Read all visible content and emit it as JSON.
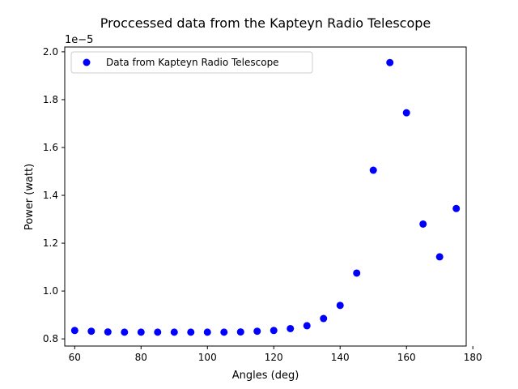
{
  "chart_data": {
    "type": "scatter",
    "title": "Proccessed data from the Kapteyn Radio Telescope",
    "xlabel": "Angles (deg)",
    "ylabel": "Power (watt)",
    "y_offset_label": "1e−5",
    "y_scale_exponent": -5,
    "xlim": [
      57,
      178
    ],
    "ylim": [
      0.77,
      2.02
    ],
    "x_ticks": [
      60,
      80,
      100,
      120,
      140,
      160,
      180
    ],
    "x_tick_labels": [
      "60",
      "80",
      "100",
      "120",
      "140",
      "160",
      "180"
    ],
    "y_ticks": [
      0.8,
      1.0,
      1.2,
      1.4,
      1.6,
      1.8,
      2.0
    ],
    "y_tick_labels": [
      "0.8",
      "1.0",
      "1.2",
      "1.4",
      "1.6",
      "1.8",
      "2.0"
    ],
    "grid": false,
    "legend_position": "top-left",
    "series": [
      {
        "name": "Data from Kapteyn Radio Telescope",
        "color": "#0000ff",
        "x": [
          60,
          65,
          70,
          75,
          80,
          85,
          90,
          95,
          100,
          105,
          110,
          115,
          120,
          125,
          130,
          135,
          140,
          145,
          150,
          155,
          160,
          165,
          170,
          175
        ],
        "y": [
          0.835,
          0.832,
          0.829,
          0.828,
          0.828,
          0.828,
          0.828,
          0.828,
          0.828,
          0.828,
          0.829,
          0.832,
          0.835,
          0.843,
          0.855,
          0.885,
          0.94,
          1.075,
          1.505,
          1.955,
          1.745,
          1.28,
          1.143,
          1.345
        ]
      }
    ]
  }
}
